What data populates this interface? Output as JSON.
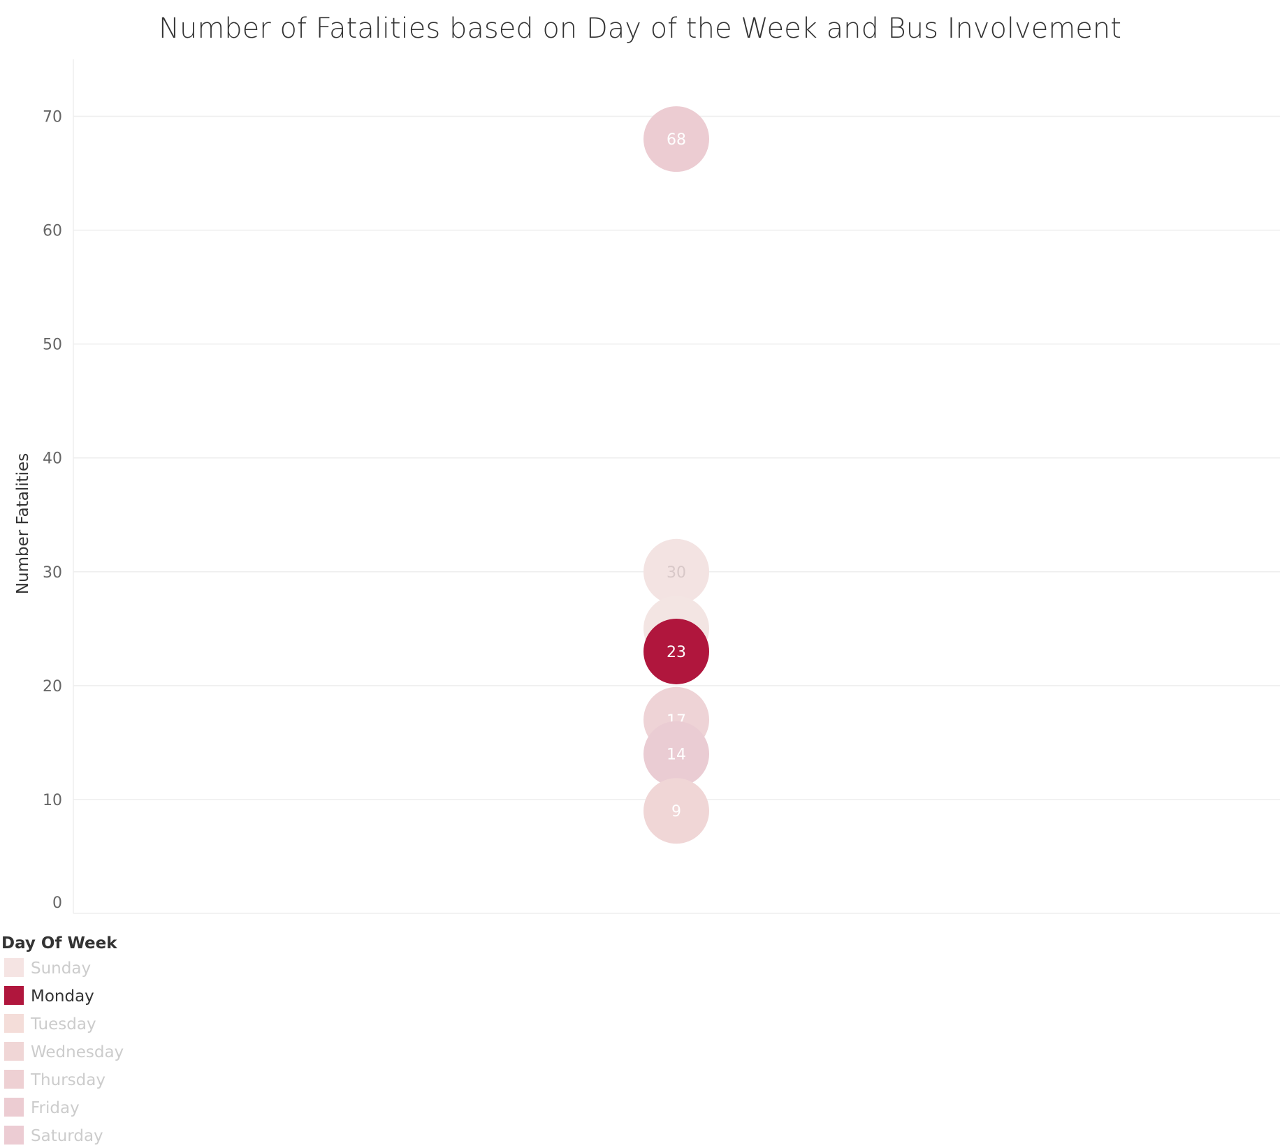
{
  "chart_data": {
    "type": "scatter",
    "title": "Number of Fatalities based on Day of the Week and Bus Involvement",
    "ylabel": "Number Fatalities",
    "xlabel": "",
    "ylim": [
      0,
      75
    ],
    "yticks": [
      0,
      10,
      20,
      30,
      40,
      50,
      60,
      70
    ],
    "grid": true,
    "legend": {
      "title": "Day Of Week",
      "placement": "bottom-left",
      "highlighted": "Monday",
      "items": [
        {
          "label": "Sunday",
          "color": "#f5e4e3"
        },
        {
          "label": "Monday",
          "color": "#b0163d"
        },
        {
          "label": "Tuesday",
          "color": "#f4ddd9"
        },
        {
          "label": "Wednesday",
          "color": "#f0d6d6"
        },
        {
          "label": "Thursday",
          "color": "#eed0d3"
        },
        {
          "label": "Friday",
          "color": "#ecccd2"
        },
        {
          "label": "Saturday",
          "color": "#ecccd3"
        }
      ]
    },
    "points": [
      {
        "day": "Sunday",
        "value": 30,
        "label": "30",
        "color": "#f3e3e2",
        "label_color": "#d8c8c8"
      },
      {
        "day": "Tuesday",
        "value": 25,
        "label": "",
        "color": "#f3e5e3",
        "label_color": "#ffffff"
      },
      {
        "day": "Saturday",
        "value": 68,
        "label": "68",
        "color": "#ecccd2",
        "label_color": "#ffffff"
      },
      {
        "day": "Thursday",
        "value": 17,
        "label": "17",
        "color": "#eed3d6",
        "label_color": "#ffffff"
      },
      {
        "day": "Friday",
        "value": 14,
        "label": "14",
        "color": "#eaccd3",
        "label_color": "#ffffff"
      },
      {
        "day": "Wednesday",
        "value": 9,
        "label": "9",
        "color": "#f0d6d6",
        "label_color": "#ffffff"
      },
      {
        "day": "Monday",
        "value": 23,
        "label": "23",
        "color": "#b0163d",
        "label_color": "#ffffff"
      }
    ]
  }
}
